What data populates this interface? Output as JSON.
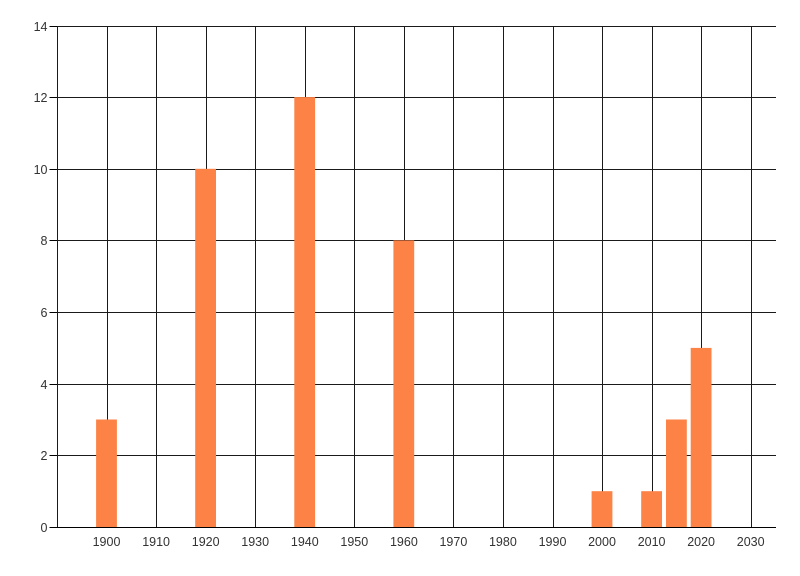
{
  "page": {
    "background": "#ffffff",
    "title": ""
  },
  "chart_data": {
    "type": "bar",
    "title": "",
    "subtitle": "",
    "xlabel": "",
    "ylabel": "",
    "x": [
      1900,
      1920,
      1940,
      1960,
      2000,
      2010,
      2015,
      2020
    ],
    "values": [
      3,
      10,
      12,
      8,
      1,
      1,
      3,
      5
    ],
    "bar_width_years": 4.2,
    "xlim": [
      1890,
      2035
    ],
    "ylim": [
      0,
      14
    ],
    "xticks": [
      1900,
      1910,
      1920,
      1930,
      1940,
      1950,
      1960,
      1970,
      1980,
      1990,
      2000,
      2010,
      2020,
      2030
    ],
    "yticks": [
      0,
      2,
      4,
      6,
      8,
      10,
      12,
      14
    ],
    "grid": true,
    "gridline_years": [
      1890,
      1900,
      1910,
      1920,
      1930,
      1940,
      1950,
      1960,
      1970,
      1980,
      1990,
      2000,
      2010,
      2020,
      2030
    ],
    "legend": "none",
    "colors": {
      "bar": "#FC8245",
      "grid": "#1a1a1a",
      "axis": "#000000",
      "tick_label": "#333333",
      "background": "#ffffff"
    }
  }
}
